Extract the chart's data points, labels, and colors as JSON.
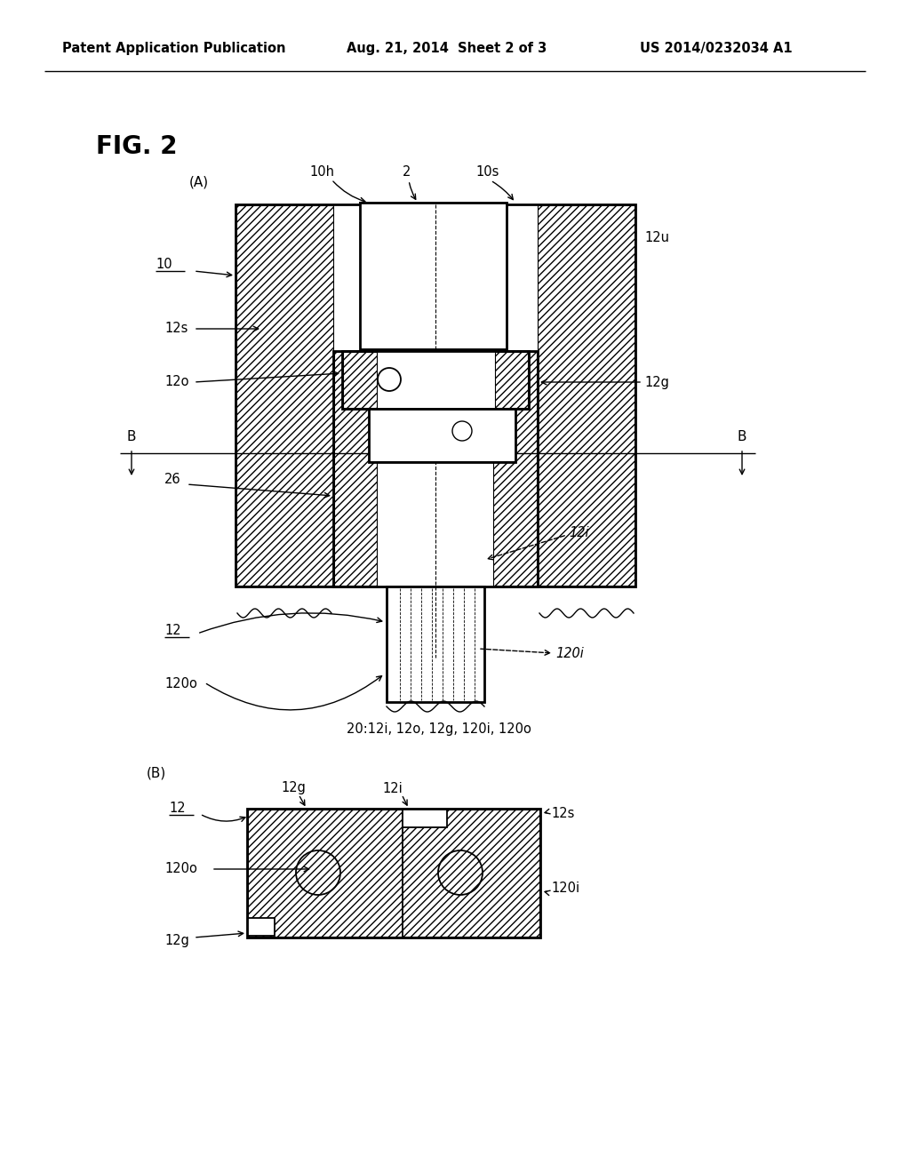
{
  "bg_color": "#ffffff",
  "header_left": "Patent Application Publication",
  "header_center": "Aug. 21, 2014  Sheet 2 of 3",
  "header_right": "US 2014/0232034 A1",
  "fig_label": "FIG. 2",
  "sub_a_label": "(A)",
  "sub_b_label": "(B)",
  "note_text": "20:12i, 12o, 12g, 120i, 120o"
}
